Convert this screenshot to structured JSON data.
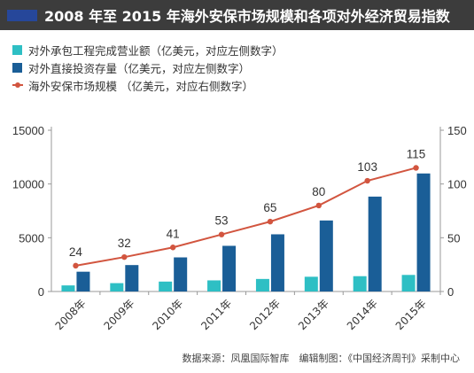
{
  "title": "2008 年至 2015 年海外安保市场规模和各项对外经济贸易指数",
  "source": "数据来源：凤凰国际智库　编辑制图：《中国经济周刊》采制中心",
  "colors": {
    "light_bar": "#2ebfc4",
    "dark_bar": "#1a5e97",
    "line": "#d2553f",
    "title_bg": "#3c3c3c",
    "title_accent": "#26479a"
  },
  "legend": [
    {
      "label": "对外承包工程完成营业额（亿美元，对应左侧数字）",
      "kind": "bar",
      "color": "#2ebfc4"
    },
    {
      "label": "对外直接投资存量（亿美元，对应左侧数字）",
      "kind": "bar",
      "color": "#1a5e97"
    },
    {
      "label": "海外安保市场规模 （亿美元，对应右侧数字）",
      "kind": "line",
      "color": "#d2553f"
    }
  ],
  "chart_data": {
    "type": "bar",
    "categories": [
      "2008年",
      "2009年",
      "2010年",
      "2011年",
      "2012年",
      "2013年",
      "2014年",
      "2015年"
    ],
    "series": [
      {
        "name": "对外承包工程完成营业额（亿美元，对应左侧数字）",
        "type": "bar",
        "axis": "left",
        "values": [
          566,
          777,
          922,
          1034,
          1166,
          1371,
          1424,
          1541
        ]
      },
      {
        "name": "对外直接投资存量（亿美元，对应左侧数字）",
        "type": "bar",
        "axis": "left",
        "values": [
          1840,
          2458,
          3172,
          4248,
          5319,
          6605,
          8826,
          10979
        ]
      },
      {
        "name": "海外安保市场规模 （亿美元，对应右侧数字）",
        "type": "line",
        "axis": "right",
        "values": [
          24,
          32,
          41,
          53,
          65,
          80,
          103,
          115
        ]
      }
    ],
    "left_axis": {
      "ticks": [
        "0",
        "5000",
        "10000",
        "15000"
      ],
      "range": [
        0,
        15000
      ]
    },
    "right_axis": {
      "ticks": [
        "0",
        "50",
        "100",
        "150"
      ],
      "range": [
        0,
        150
      ]
    },
    "grid": false
  }
}
